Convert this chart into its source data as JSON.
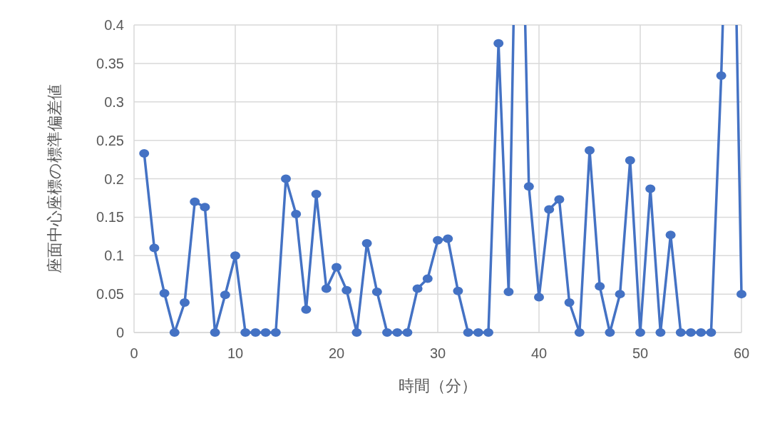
{
  "chart_data": {
    "type": "line",
    "xlabel": "時間（分）",
    "ylabel": "座面中心座標の標準偏差値",
    "x": [
      1,
      2,
      3,
      4,
      5,
      6,
      7,
      8,
      9,
      10,
      11,
      12,
      13,
      14,
      15,
      16,
      17,
      18,
      19,
      20,
      21,
      22,
      23,
      24,
      25,
      26,
      27,
      28,
      29,
      30,
      31,
      32,
      33,
      34,
      35,
      36,
      37,
      38,
      39,
      40,
      41,
      42,
      43,
      44,
      45,
      46,
      47,
      48,
      49,
      50,
      51,
      52,
      53,
      54,
      55,
      56,
      57,
      58,
      59,
      60
    ],
    "series": [
      {
        "color": "#4472c4",
        "values": [
          0.233,
          0.11,
          0.051,
          0,
          0.039,
          0.17,
          0.163,
          0,
          0.049,
          0.1,
          0,
          0,
          0,
          0,
          0.2,
          0.154,
          0.03,
          0.18,
          0.057,
          0.085,
          0.055,
          0,
          0.116,
          0.053,
          0,
          0,
          0,
          0.057,
          0.07,
          0.12,
          0.122,
          0.054,
          0,
          0,
          0,
          0.376,
          0.053,
          null,
          0.19,
          0.046,
          0.16,
          0.173,
          0.039,
          0,
          0.237,
          0.06,
          0,
          0.05,
          0.224,
          0,
          0.187,
          0,
          0.127,
          0,
          0,
          0,
          0,
          0.334,
          null,
          0.05
        ]
      }
    ],
    "xlim": [
      0,
      60
    ],
    "xticks": [
      0,
      10,
      20,
      30,
      40,
      50,
      60
    ],
    "ylim": [
      0,
      0.4
    ],
    "yticks": [
      0,
      0.05,
      0.1,
      0.15,
      0.2,
      0.25,
      0.3,
      0.35,
      0.4
    ],
    "grid": true,
    "marker": "circle"
  }
}
